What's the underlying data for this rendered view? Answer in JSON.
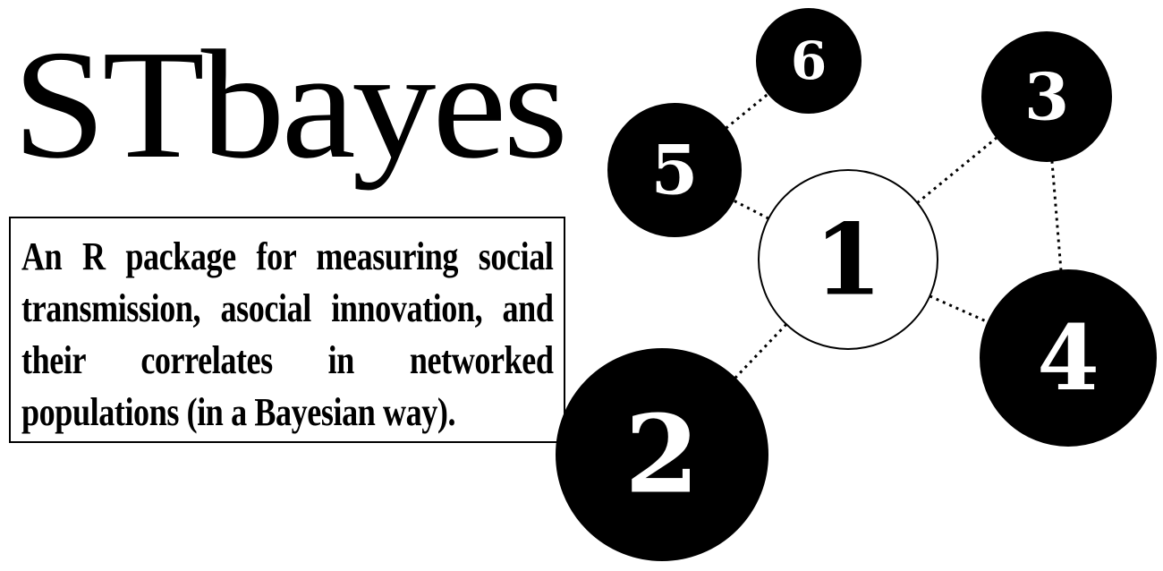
{
  "logo": {
    "title": "STbayes"
  },
  "description": {
    "text": "An R package for measuring social transmission, asocial innovation, and their correlates in networked populations (in a Bayesian way)."
  },
  "network": {
    "nodes": [
      {
        "id": "1",
        "label": "1",
        "filled": false
      },
      {
        "id": "2",
        "label": "2",
        "filled": true
      },
      {
        "id": "3",
        "label": "3",
        "filled": true
      },
      {
        "id": "4",
        "label": "4",
        "filled": true
      },
      {
        "id": "5",
        "label": "5",
        "filled": true
      },
      {
        "id": "6",
        "label": "6",
        "filled": true
      }
    ],
    "edges": [
      [
        "1",
        "2"
      ],
      [
        "1",
        "3"
      ],
      [
        "1",
        "4"
      ],
      [
        "1",
        "5"
      ],
      [
        "3",
        "4"
      ],
      [
        "5",
        "6"
      ]
    ],
    "colors": {
      "fill": "#000000",
      "stroke": "#000000",
      "background": "#ffffff"
    }
  }
}
